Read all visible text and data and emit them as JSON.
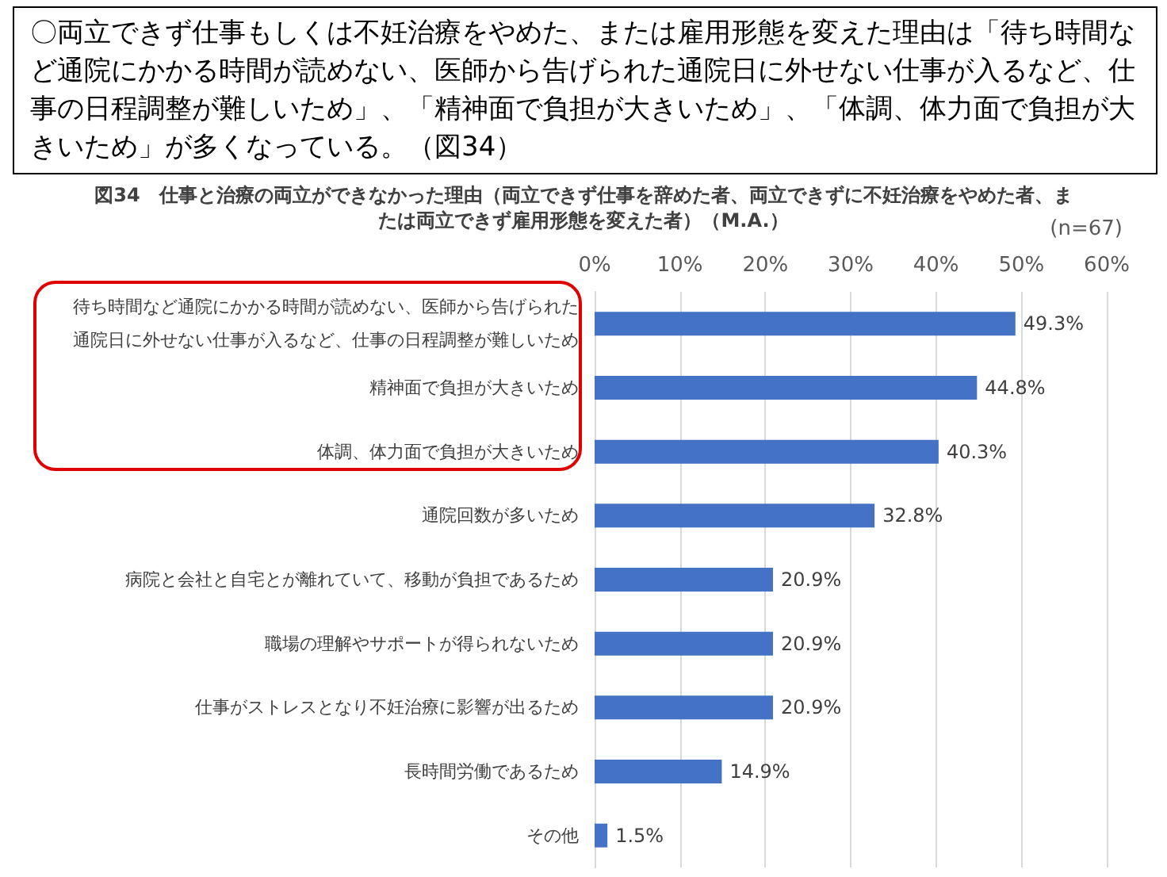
{
  "chart_data": {
    "type": "bar",
    "orientation": "horizontal",
    "title": "図34　仕事と治療の両立ができなかった理由（両立できず仕事を辞めた者、両立できずに不妊治療をやめた者、または両立できず雇用形態を変えた者）（M.A.）",
    "annotations": [
      "〇両立できず仕事もしくは不妊治療をやめた、または雇用形態を変えた理由は「待ち時間など通院にかかる時間が読めない、医師から告げられた通院日に外せない仕事が入るなど、仕事の日程調整が難しいため」、「精神面で負担が大きいため」、「体調、体力面で負担が大きいため」が多くなっている。（図34）",
      "(n=67)"
    ],
    "categories": [
      "待ち時間など通院にかかる時間が読めない、医師から告げられた通院日に外せない仕事が入るなど、仕事の日程調整が難しいため",
      "精神面で負担が大きいため",
      "体調、体力面で負担が大きいため",
      "通院回数が多いため",
      "病院と会社と自宅とが離れていて、移動が負担であるため",
      "職場の理解やサポートが得られないため",
      "仕事がストレスとなり不妊治療に影響が出るため",
      "長時間労働であるため",
      "その他"
    ],
    "values": [
      49.3,
      44.8,
      40.3,
      32.8,
      20.9,
      20.9,
      20.9,
      14.9,
      1.5
    ],
    "value_labels": [
      "49.3%",
      "44.8%",
      "40.3%",
      "32.8%",
      "20.9%",
      "20.9%",
      "20.9%",
      "14.9%",
      "1.5%"
    ],
    "color": "#4472c4",
    "xlim": [
      0,
      60
    ],
    "xticks": [
      {
        "value": 0,
        "label": "0%"
      },
      {
        "value": 10,
        "label": "10%"
      },
      {
        "value": 20,
        "label": "20%"
      },
      {
        "value": 30,
        "label": "30%"
      },
      {
        "value": 40,
        "label": "40%"
      },
      {
        "value": 50,
        "label": "50%"
      },
      {
        "value": 60,
        "label": "60%"
      }
    ],
    "grid": "x"
  }
}
